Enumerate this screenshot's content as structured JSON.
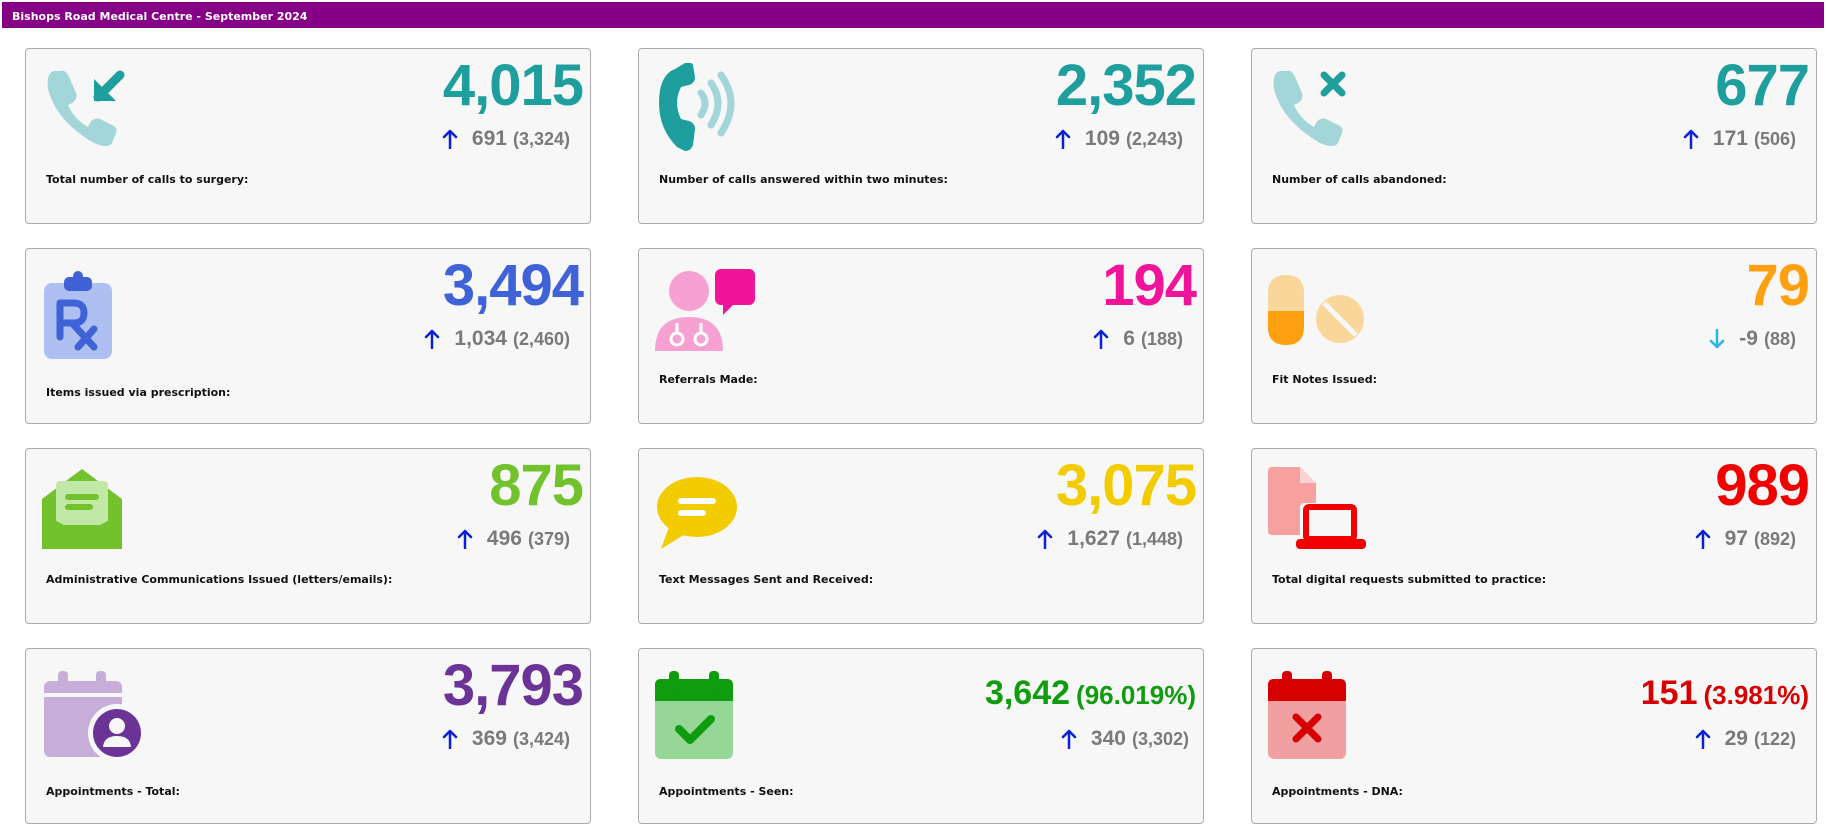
{
  "header": {
    "title": "Bishops Road Medical Centre - September 2024"
  },
  "colors": {
    "header": "#850085",
    "teal": "#1f9e9e",
    "blue": "#3f62d6",
    "pink": "#f0149a",
    "orange": "#ffa010",
    "green": "#71c22c",
    "yellow": "#f2cc00",
    "red": "#f20000",
    "purple": "#6b3396",
    "seen": "#0f9c0f",
    "dna": "#d60000",
    "arrow_up": "#0a20d8",
    "arrow_down": "#2ab4ea"
  },
  "cards": [
    {
      "label": "Total number of calls to surgery:",
      "value": "4,015",
      "delta": "691",
      "prev": "(3,324)",
      "trend": "up",
      "icon": "phone-incoming-icon"
    },
    {
      "label": "Number of calls answered within two minutes:",
      "value": "2,352",
      "delta": "109",
      "prev": "(2,243)",
      "trend": "up",
      "icon": "phone-ringing-icon"
    },
    {
      "label": "Number of calls abandoned:",
      "value": "677",
      "delta": "171",
      "prev": "(506)",
      "trend": "up",
      "icon": "phone-missed-icon"
    },
    {
      "label": "Items issued via prescription:",
      "value": "3,494",
      "delta": "1,034",
      "prev": "(2,460)",
      "trend": "up",
      "icon": "prescription-clipboard-icon"
    },
    {
      "label": "Referrals Made:",
      "value": "194",
      "delta": "6",
      "prev": "(188)",
      "trend": "up",
      "icon": "doctor-message-icon"
    },
    {
      "label": "Fit Notes Issued:",
      "value": "79",
      "delta": "-9",
      "prev": "(88)",
      "trend": "down",
      "icon": "pills-icon"
    },
    {
      "label": "Administrative Communications Issued (letters/emails):",
      "value": "875",
      "delta": "496",
      "prev": "(379)",
      "trend": "up",
      "icon": "open-envelope-icon"
    },
    {
      "label": "Text Messages Sent and Received:",
      "value": "3,075",
      "delta": "1,627",
      "prev": "(1,448)",
      "trend": "up",
      "icon": "chat-bubble-icon"
    },
    {
      "label": "Total digital requests submitted to practice:",
      "value": "989",
      "delta": "97",
      "prev": "(892)",
      "trend": "up",
      "icon": "document-laptop-icon"
    },
    {
      "label": "Appointments - Total:",
      "value": "3,793",
      "delta": "369",
      "prev": "(3,424)",
      "trend": "up",
      "icon": "calendar-person-icon"
    },
    {
      "label": "Appointments - Seen:",
      "value": "3,642",
      "pct": "(96.019%)",
      "delta": "340",
      "prev": "(3,302)",
      "trend": "up",
      "icon": "calendar-check-icon"
    },
    {
      "label": "Appointments - DNA:",
      "value": "151",
      "pct": "(3.981%)",
      "delta": "29",
      "prev": "(122)",
      "trend": "up",
      "icon": "calendar-x-icon"
    }
  ]
}
